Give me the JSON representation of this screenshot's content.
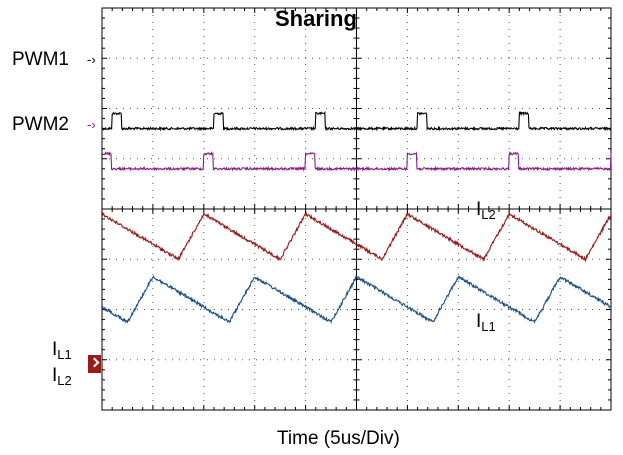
{
  "chart_data": {
    "type": "line",
    "title": "Sharing",
    "xlabel": "Time (5us/Div)",
    "ylabel": "",
    "grid": true,
    "x_unit": "us",
    "x_per_div": 5,
    "x_divisions": 10,
    "y_divisions": 8,
    "series": [
      {
        "name": "PWM1",
        "kind": "digital",
        "color": "#000000",
        "period_us": 10,
        "high_width_us": 0.9,
        "first_rising_edge_us": 1.0,
        "level_divs": [
          5.6,
          5.9
        ]
      },
      {
        "name": "PWM2",
        "kind": "digital",
        "color": "#8b1a8b",
        "period_us": 10,
        "high_width_us": 0.9,
        "first_rising_edge_us": 0.0,
        "level_divs": [
          4.8,
          5.1
        ]
      },
      {
        "name": "IL2",
        "kind": "triangle",
        "color": "#9b1b1b",
        "period_us": 10,
        "peak_times_us": [
          0.0,
          10.0,
          20.0,
          30.0,
          40.0
        ],
        "peak_div": 3.9,
        "valley_div": 3.0
      },
      {
        "name": "IL1",
        "kind": "triangle",
        "color": "#1b4f8b",
        "period_us": 10,
        "peak_times_us": [
          5.0,
          15.0,
          25.0,
          35.0,
          45.0
        ],
        "peak_div": 2.65,
        "valley_div": 1.75
      }
    ]
  },
  "labels": {
    "pwm1": "PWM1",
    "pwm2": "PWM2",
    "i_letter": "I",
    "l1_sub": "L1",
    "l2_sub": "L2"
  },
  "colors": {
    "marker": "#9b1b1b",
    "grid": "#555555"
  }
}
